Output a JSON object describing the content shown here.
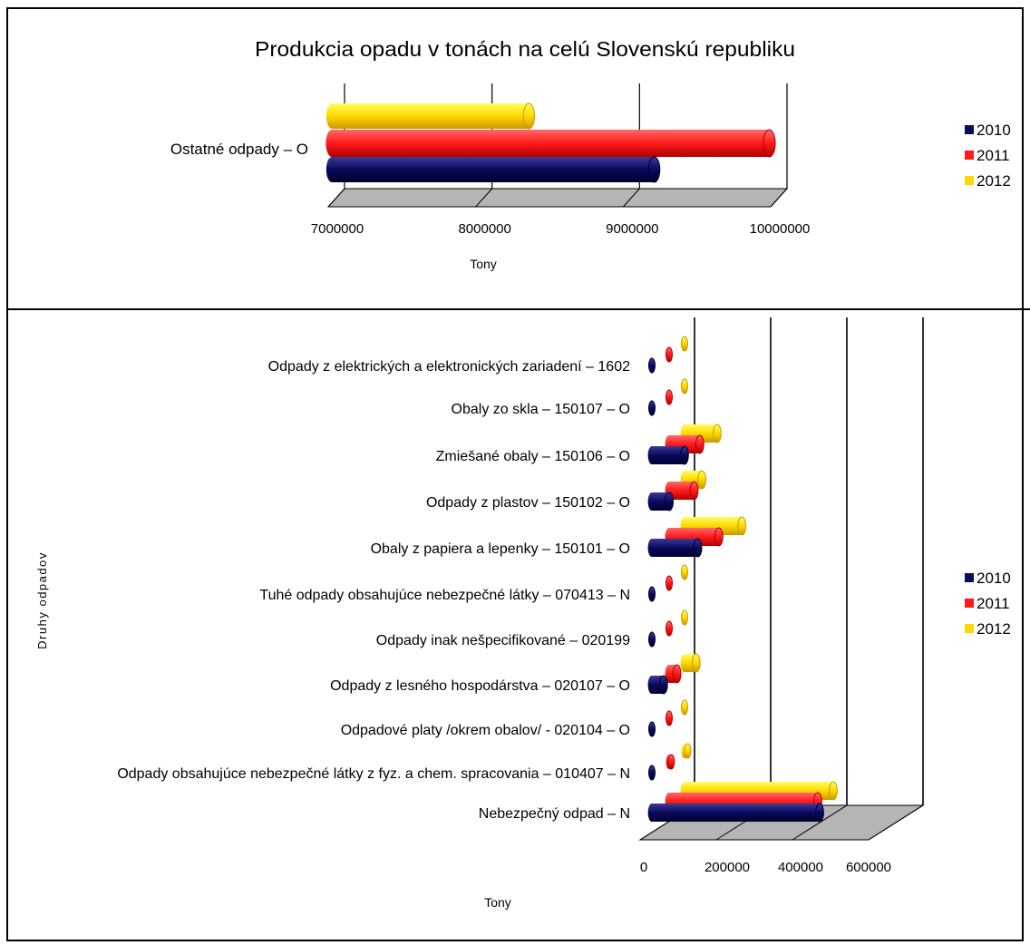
{
  "colors": {
    "2010": "#0a0a5a",
    "2011": "#ff1a1a",
    "2012": "#ffd700",
    "floor": "#b5b5b5",
    "grid": "#000000"
  },
  "chart_data": [
    {
      "type": "bar",
      "orientation": "horizontal",
      "title": "Produkcia opadu v tonách na celú Slovenskú republiku",
      "xlabel": "Tony",
      "ylabel": "",
      "xlim": [
        7000000,
        10000000
      ],
      "ticks": [
        "7000000",
        "8000000",
        "9000000",
        "10000000"
      ],
      "categories": [
        "Ostatné odpady – O"
      ],
      "series": [
        {
          "name": "2010",
          "values": [
            9100000
          ]
        },
        {
          "name": "2011",
          "values": [
            9880000
          ]
        },
        {
          "name": "2012",
          "values": [
            8250000
          ]
        }
      ],
      "legend": [
        "2010",
        "2011",
        "2012"
      ],
      "legend_position": "right",
      "grid": true
    },
    {
      "type": "bar",
      "orientation": "horizontal",
      "title": "",
      "xlabel": "Tony",
      "ylabel": "Druhy odpadov",
      "xlim": [
        0,
        600000
      ],
      "ticks": [
        "0",
        "200000",
        "400000",
        "600000"
      ],
      "categories": [
        "Odpady z elektrických a elektronických zariadení – 1602",
        "Obaly zo skla – 150107 – O",
        "Zmiešané obaly – 150106 – O",
        "Odpady z plastov – 150102 – O",
        "Obaly z papiera a lepenky – 150101 – O",
        "Tuhé odpady obsahujúce nebezpečné látky – 070413 – N",
        "Odpady inak nešpecifikované – 020199",
        "Odpady z lesného hospodárstva – 020107 – O",
        "Odpadové platy /okrem obalov/ - 020104 – O",
        "Odpady obsahujúce nebezpečné látky z fyz. a chem. spracovania – 010407 – N",
        "Nebezpečný odpad – N"
      ],
      "series": [
        {
          "name": "2010",
          "values": [
            3000,
            2000,
            95000,
            55000,
            130000,
            1000,
            1000,
            40000,
            1000,
            5000,
            450000
          ]
        },
        {
          "name": "2011",
          "values": [
            5000,
            3000,
            90000,
            75000,
            140000,
            2000,
            2000,
            30000,
            2000,
            15000,
            400000
          ]
        },
        {
          "name": "2012",
          "values": [
            8000,
            5000,
            95000,
            55000,
            160000,
            4000,
            3000,
            40000,
            4000,
            18000,
            400000
          ]
        }
      ],
      "legend": [
        "2010",
        "2011",
        "2012"
      ],
      "legend_position": "right",
      "grid": true
    }
  ]
}
